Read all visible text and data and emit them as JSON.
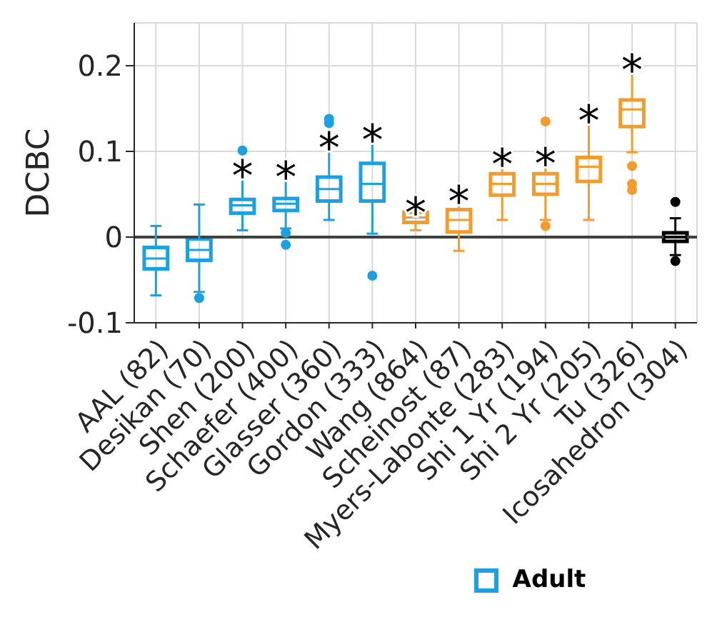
{
  "chart_data": {
    "type": "box",
    "ylabel": "DCBC",
    "categories": [
      "AAL (82)",
      "Desikan (70)",
      "Shen (200)",
      "Schaefer (400)",
      "Glasser (360)",
      "Gordon (333)",
      "Wang (864)",
      "Scheinost (87)",
      "Myers-Labonte (283)",
      "Shi 1 Yr (194)",
      "Shi 2 Yr (205)",
      "Tu (326)",
      "Icosahedron (304)"
    ],
    "series": [
      {
        "name": "Adult",
        "color": "#1ba1e2",
        "boxes": [
          {
            "low": -0.068,
            "q1": -0.037,
            "median": -0.025,
            "q3": -0.012,
            "high": 0.013
          },
          {
            "low": -0.064,
            "q1": -0.027,
            "median": -0.015,
            "q3": -0.002,
            "high": 0.038,
            "outliers": [
              -0.071
            ]
          },
          {
            "low": 0.008,
            "q1": 0.028,
            "median": 0.037,
            "q3": 0.044,
            "high": 0.079,
            "outliers": [
              0.101
            ]
          },
          {
            "low": 0.01,
            "q1": 0.031,
            "median": 0.039,
            "q3": 0.045,
            "high": 0.077,
            "outliers": [
              0.005,
              -0.009
            ]
          },
          {
            "low": 0.02,
            "q1": 0.042,
            "median": 0.056,
            "q3": 0.07,
            "high": 0.111,
            "outliers": [
              0.138,
              0.133
            ]
          },
          {
            "low": 0.004,
            "q1": 0.042,
            "median": 0.062,
            "q3": 0.086,
            "high": 0.12,
            "outliers": [
              -0.045
            ]
          },
          null,
          null,
          null,
          null,
          null,
          null,
          null
        ]
      },
      {
        "color": "#f39c2c",
        "boxes": [
          null,
          null,
          null,
          null,
          null,
          null,
          {
            "low": 0.008,
            "q1": 0.017,
            "median": 0.023,
            "q3": 0.029,
            "high": 0.035
          },
          {
            "low": -0.016,
            "q1": 0.006,
            "median": 0.02,
            "q3": 0.032,
            "high": 0.049
          },
          {
            "low": 0.02,
            "q1": 0.049,
            "median": 0.062,
            "q3": 0.074,
            "high": 0.092
          },
          {
            "low": 0.02,
            "q1": 0.05,
            "median": 0.062,
            "q3": 0.074,
            "high": 0.093,
            "outliers": [
              0.013,
              0.135
            ]
          },
          {
            "low": 0.02,
            "q1": 0.065,
            "median": 0.082,
            "q3": 0.093,
            "high": 0.143
          },
          {
            "low": 0.099,
            "q1": 0.129,
            "median": 0.149,
            "q3": 0.16,
            "high": 0.202,
            "outliers": [
              0.083,
              0.062,
              0.055
            ]
          },
          null
        ]
      },
      {
        "color": "#000000",
        "boxes": [
          null,
          null,
          null,
          null,
          null,
          null,
          null,
          null,
          null,
          null,
          null,
          null,
          {
            "low": -0.021,
            "q1": -0.005,
            "median": 0,
            "q3": 0.005,
            "high": 0.022,
            "outliers": [
              0.041,
              -0.028
            ]
          }
        ]
      }
    ],
    "ylim": [
      -0.1,
      0.25
    ],
    "yticks": [
      -0.1,
      0,
      0.1,
      0.2
    ],
    "grid": true,
    "legend": "bottom",
    "ref_lines": [
      {
        "axis": "y",
        "value": 0,
        "color": "#404040"
      }
    ],
    "annotations": [
      {
        "text": "*",
        "x": "Shen (200)",
        "y": 0.079
      },
      {
        "text": "*",
        "x": "Schaefer (400)",
        "y": 0.077
      },
      {
        "text": "*",
        "x": "Glasser (360)",
        "y": 0.111
      },
      {
        "text": "*",
        "x": "Gordon (333)",
        "y": 0.12
      },
      {
        "text": "*",
        "x": "Wang (864)",
        "y": 0.035
      },
      {
        "text": "*",
        "x": "Scheinost (87)",
        "y": 0.049
      },
      {
        "text": "*",
        "x": "Myers-Labonte (283)",
        "y": 0.092
      },
      {
        "text": "*",
        "x": "Shi 1 Yr (194)",
        "y": 0.093
      },
      {
        "text": "*",
        "x": "Shi 2 Yr (205)",
        "y": 0.143
      },
      {
        "text": "*",
        "x": "Tu (326)",
        "y": 0.202
      }
    ]
  }
}
